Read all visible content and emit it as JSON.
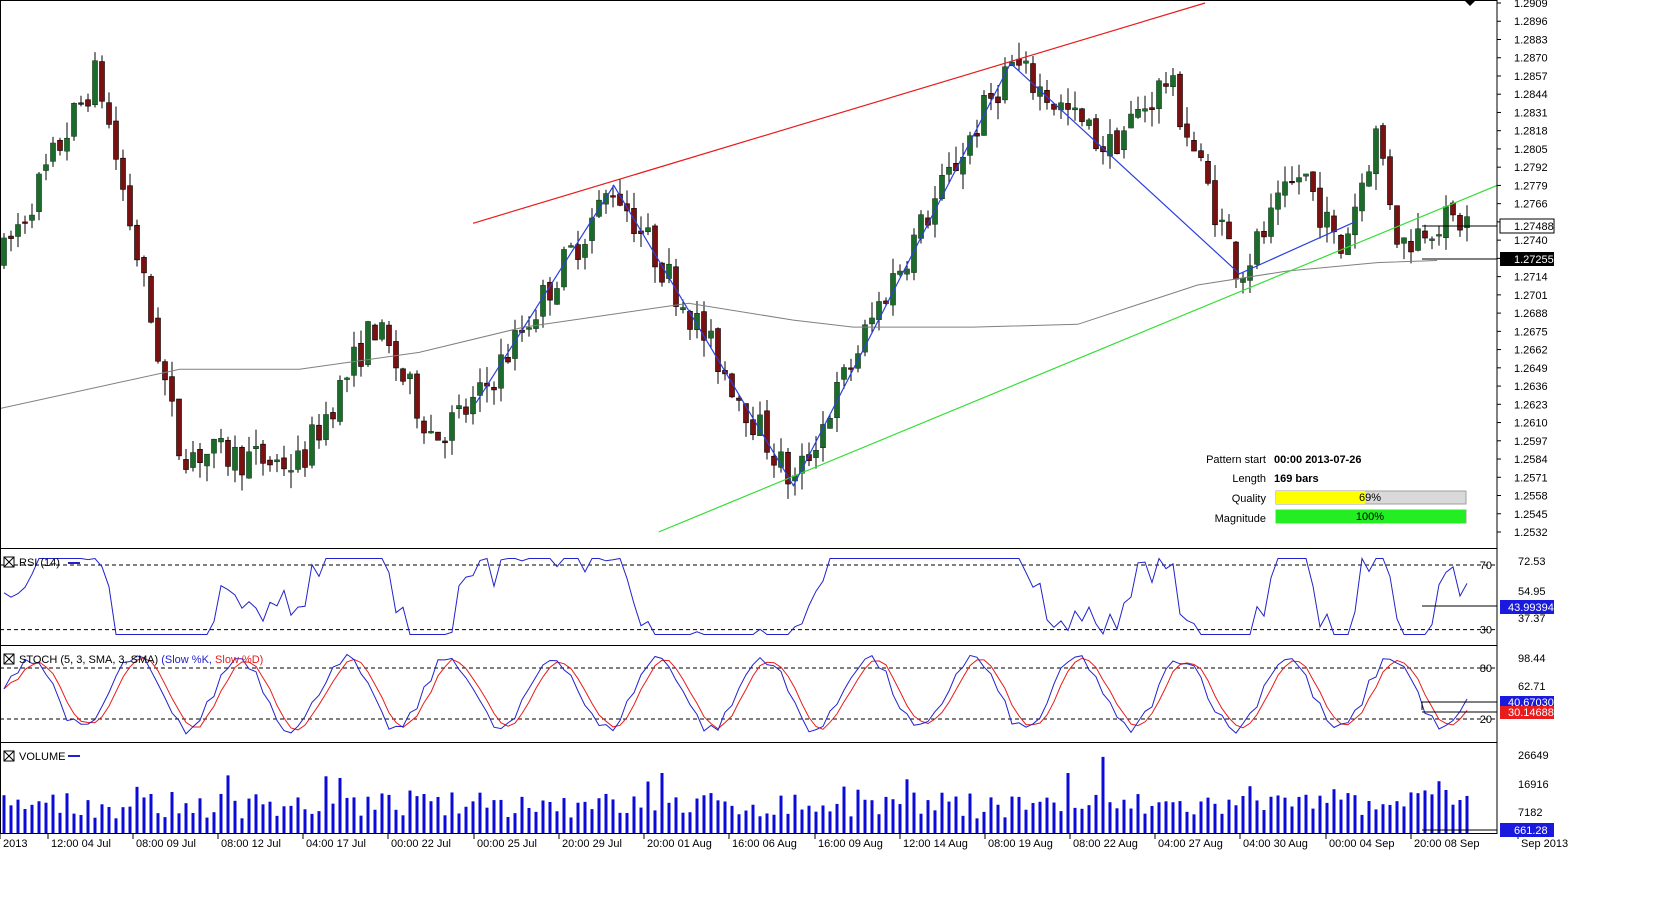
{
  "chart_data": [
    {
      "type": "candlestick",
      "name": "main",
      "ylim": [
        1.2532,
        1.2909
      ],
      "y_ticks": [
        "1.2909",
        "1.2896",
        "1.2883",
        "1.2870",
        "1.2857",
        "1.2844",
        "1.2831",
        "1.2818",
        "1.2805",
        "1.2792",
        "1.2779",
        "1.2766",
        "1.2753",
        "1.2740",
        "1.2727",
        "1.2714",
        "1.2701",
        "1.2688",
        "1.2675",
        "1.2662",
        "1.2649",
        "1.2636",
        "1.2623",
        "1.2610",
        "1.2597",
        "1.2584",
        "1.2571",
        "1.2558",
        "1.2545",
        "1.2532"
      ],
      "x_ticks": [
        "2013",
        "12:00 04 Jul",
        "08:00 09 Jul",
        "08:00 12 Jul",
        "04:00 17 Jul",
        "00:00 22 Jul",
        "00:00 25 Jul",
        "20:00 29 Jul",
        "20:00 01 Aug",
        "16:00 06 Aug",
        "16:00 09 Aug",
        "12:00 14 Aug",
        "08:00 19 Aug",
        "08:00 22 Aug",
        "04:00 27 Aug",
        "04:00 30 Aug",
        "00:00 04 Sep",
        "20:00 08 Sep",
        "Sep 2013"
      ],
      "last_price": "1.27488",
      "ma_value": "1.27255",
      "channel_upper": [
        [
          0.316,
          1.2752
        ],
        [
          0.805,
          1.2909
        ]
      ],
      "channel_lower": [
        [
          0.44,
          1.2532
        ],
        [
          1.0,
          1.2779
        ]
      ],
      "zigzag": [
        [
          0.318,
          1.2624
        ],
        [
          0.41,
          1.2779
        ],
        [
          0.53,
          1.2565
        ],
        [
          0.675,
          1.2866
        ],
        [
          0.828,
          1.2716
        ],
        [
          0.905,
          1.2753
        ]
      ],
      "pattern": {
        "start_label": "Pattern start",
        "start_value": "00:00 2013-07-26",
        "length_label": "Length",
        "length_value": "169 bars",
        "quality_label": "Quality",
        "quality_value": 69,
        "quality_text": "69%",
        "magnitude_label": "Magnitude",
        "magnitude_value": 100,
        "magnitude_text": "100%"
      },
      "colors": {
        "up": "#1b6b2a",
        "down": "#7a1010",
        "upper_line": "#e81c1c",
        "lower_line": "#33dd33",
        "zigzag": "#2a3fe0",
        "ma": "#808080"
      }
    },
    {
      "type": "line",
      "name": "rsi",
      "title": "RSI (14)",
      "ylim": [
        23,
        78
      ],
      "levels": [
        "70",
        "30"
      ],
      "y_ticks": [
        "72.53",
        "54.95",
        "37.37"
      ],
      "last_value": "43.99394",
      "series": [
        {
          "name": "RSI",
          "color": "#2222cc"
        }
      ]
    },
    {
      "type": "line",
      "name": "stoch",
      "title": "STOCH (5, 3, SMA, 3, SMA)",
      "series_labels": [
        {
          "text": "(Slow %K,",
          "color": "#2222cc"
        },
        {
          "text": "Slow %D)",
          "color": "#e81c1c"
        }
      ],
      "ylim": [
        0,
        100
      ],
      "levels": [
        "80",
        "20"
      ],
      "y_ticks": [
        "98.44",
        "62.71"
      ],
      "last_k": "40.67030",
      "last_d": "30.14688"
    },
    {
      "type": "bar",
      "name": "volume",
      "title": "VOLUME",
      "y_ticks": [
        "26649",
        "16916",
        "7182"
      ],
      "last_value": "661.28",
      "color": "#0b0bd8"
    }
  ]
}
